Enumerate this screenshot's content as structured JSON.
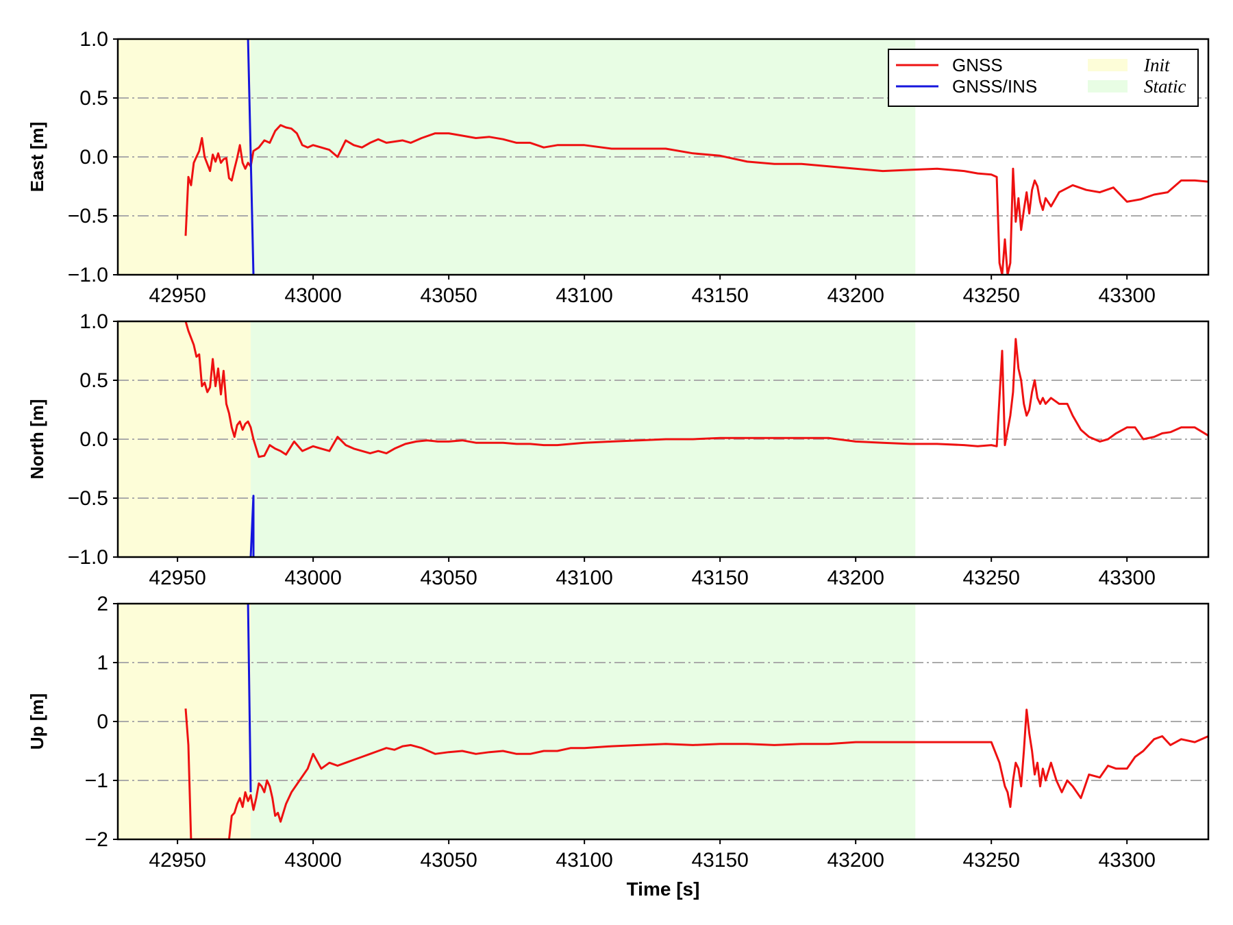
{
  "colors": {
    "gnss": "#ee1111",
    "gnss_ins": "#1515dd",
    "init_region": "#fdfdd8",
    "static_region": "#e8fde4",
    "grid": "#aaaaaa"
  },
  "legend": {
    "gnss": "GNSS",
    "gnss_ins": "GNSS/INS",
    "init": "Init",
    "static": "Static"
  },
  "chart_data": [
    {
      "type": "line",
      "ylabel": "East [m]",
      "xlabel": "",
      "xlim": [
        42928,
        43330
      ],
      "ylim": [
        -1.0,
        1.0
      ],
      "xticks": [
        42950,
        43000,
        43050,
        43100,
        43150,
        43200,
        43250,
        43300
      ],
      "yticks": [
        -1.0,
        -0.5,
        0.0,
        0.5,
        1.0
      ],
      "ytick_labels": [
        "−1.0",
        "−0.5",
        "0.0",
        "0.5",
        "1.0"
      ],
      "grid": "y-dashdot",
      "legend_position": "top-right",
      "regions": [
        {
          "name": "Init",
          "x": [
            42928,
            42977
          ]
        },
        {
          "name": "Static",
          "x": [
            42977,
            43222
          ]
        }
      ],
      "series": [
        {
          "name": "GNSS",
          "x": [
            42953,
            42954,
            42955,
            42956,
            42957,
            42958,
            42959,
            42960,
            42962,
            42963,
            42964,
            42965,
            42966,
            42967,
            42968,
            42969,
            42970,
            42971,
            42972,
            42973,
            42974,
            42975,
            42976,
            42977,
            42978,
            42980,
            42982,
            42984,
            42986,
            42988,
            42990,
            42992,
            42994,
            42996,
            42998,
            43000,
            43003,
            43006,
            43009,
            43012,
            43015,
            43018,
            43021,
            43024,
            43027,
            43030,
            43033,
            43036,
            43040,
            43045,
            43050,
            43055,
            43060,
            43065,
            43070,
            43075,
            43080,
            43085,
            43090,
            43095,
            43100,
            43110,
            43120,
            43130,
            43140,
            43150,
            43160,
            43170,
            43180,
            43190,
            43200,
            43210,
            43220,
            43230,
            43240,
            43245,
            43250,
            43252,
            43253,
            43254,
            43255,
            43256,
            43257,
            43258,
            43259,
            43260,
            43261,
            43262,
            43263,
            43264,
            43265,
            43266,
            43267,
            43268,
            43269,
            43270,
            43272,
            43275,
            43280,
            43285,
            43290,
            43295,
            43300,
            43305,
            43310,
            43315,
            43320,
            43325,
            43330
          ],
          "y": [
            -0.67,
            -0.17,
            -0.24,
            -0.05,
            0.0,
            0.05,
            0.16,
            0.0,
            -0.12,
            0.02,
            -0.04,
            0.03,
            -0.05,
            -0.02,
            -0.01,
            -0.18,
            -0.2,
            -0.1,
            -0.01,
            0.1,
            -0.05,
            -0.1,
            -0.05,
            -0.08,
            0.05,
            0.08,
            0.14,
            0.12,
            0.22,
            0.27,
            0.25,
            0.24,
            0.2,
            0.1,
            0.08,
            0.1,
            0.08,
            0.06,
            0.0,
            0.14,
            0.1,
            0.08,
            0.12,
            0.15,
            0.12,
            0.13,
            0.14,
            0.12,
            0.16,
            0.2,
            0.2,
            0.18,
            0.16,
            0.17,
            0.15,
            0.12,
            0.12,
            0.08,
            0.1,
            0.1,
            0.1,
            0.07,
            0.07,
            0.07,
            0.03,
            0.01,
            -0.04,
            -0.06,
            -0.06,
            -0.08,
            -0.1,
            -0.12,
            -0.11,
            -0.1,
            -0.12,
            -0.14,
            -0.15,
            -0.17,
            -0.9,
            -1.0,
            -0.7,
            -1.0,
            -0.9,
            -0.1,
            -0.55,
            -0.35,
            -0.62,
            -0.45,
            -0.3,
            -0.48,
            -0.28,
            -0.2,
            -0.25,
            -0.38,
            -0.45,
            -0.35,
            -0.42,
            -0.3,
            -0.24,
            -0.28,
            -0.3,
            -0.26,
            -0.38,
            -0.36,
            -0.32,
            -0.3,
            -0.2,
            -0.2,
            -0.21
          ]
        },
        {
          "name": "GNSS/INS",
          "x": [
            42976,
            42978
          ],
          "y": [
            1.0,
            -1.0
          ]
        }
      ]
    },
    {
      "type": "line",
      "ylabel": "North [m]",
      "xlabel": "",
      "xlim": [
        42928,
        43330
      ],
      "ylim": [
        -1.0,
        1.0
      ],
      "xticks": [
        42950,
        43000,
        43050,
        43100,
        43150,
        43200,
        43250,
        43300
      ],
      "yticks": [
        -1.0,
        -0.5,
        0.0,
        0.5,
        1.0
      ],
      "ytick_labels": [
        "−1.0",
        "−0.5",
        "0.0",
        "0.5",
        "1.0"
      ],
      "grid": "y-dashdot",
      "regions": [
        {
          "name": "Init",
          "x": [
            42928,
            42977
          ]
        },
        {
          "name": "Static",
          "x": [
            42977,
            43222
          ]
        }
      ],
      "series": [
        {
          "name": "GNSS",
          "x": [
            42953,
            42954,
            42956,
            42957,
            42958,
            42959,
            42960,
            42961,
            42962,
            42963,
            42964,
            42965,
            42966,
            42967,
            42968,
            42969,
            42970,
            42971,
            42972,
            42973,
            42974,
            42975,
            42976,
            42977,
            42978,
            42980,
            42982,
            42984,
            42986,
            42988,
            42990,
            42993,
            42996,
            43000,
            43003,
            43006,
            43009,
            43012,
            43015,
            43018,
            43021,
            43024,
            43027,
            43030,
            43034,
            43038,
            43042,
            43046,
            43050,
            43055,
            43060,
            43065,
            43070,
            43075,
            43080,
            43085,
            43090,
            43095,
            43100,
            43110,
            43120,
            43130,
            43140,
            43150,
            43160,
            43170,
            43180,
            43190,
            43200,
            43210,
            43220,
            43230,
            43240,
            43245,
            43250,
            43252,
            43254,
            43255,
            43257,
            43258,
            43259,
            43260,
            43261,
            43262,
            43263,
            43264,
            43265,
            43266,
            43267,
            43268,
            43269,
            43270,
            43272,
            43275,
            43278,
            43280,
            43283,
            43286,
            43290,
            43293,
            43296,
            43300,
            43303,
            43306,
            43310,
            43313,
            43316,
            43320,
            43325,
            43330
          ],
          "y": [
            1.0,
            0.92,
            0.8,
            0.7,
            0.72,
            0.45,
            0.48,
            0.4,
            0.44,
            0.68,
            0.45,
            0.6,
            0.38,
            0.58,
            0.3,
            0.22,
            0.1,
            0.02,
            0.12,
            0.15,
            0.08,
            0.13,
            0.15,
            0.1,
            0.0,
            -0.15,
            -0.14,
            -0.05,
            -0.08,
            -0.1,
            -0.13,
            -0.02,
            -0.1,
            -0.06,
            -0.08,
            -0.1,
            0.02,
            -0.05,
            -0.08,
            -0.1,
            -0.12,
            -0.1,
            -0.12,
            -0.08,
            -0.04,
            -0.02,
            -0.01,
            -0.02,
            -0.02,
            -0.01,
            -0.03,
            -0.03,
            -0.03,
            -0.04,
            -0.04,
            -0.05,
            -0.05,
            -0.04,
            -0.03,
            -0.02,
            -0.01,
            0.0,
            0.0,
            0.01,
            0.01,
            0.01,
            0.01,
            0.01,
            -0.02,
            -0.03,
            -0.04,
            -0.04,
            -0.05,
            -0.06,
            -0.05,
            -0.06,
            0.75,
            -0.05,
            0.2,
            0.4,
            0.85,
            0.6,
            0.5,
            0.3,
            0.2,
            0.25,
            0.4,
            0.5,
            0.35,
            0.3,
            0.35,
            0.3,
            0.35,
            0.3,
            0.3,
            0.2,
            0.08,
            0.02,
            -0.02,
            0.0,
            0.05,
            0.1,
            0.1,
            0.0,
            0.02,
            0.05,
            0.06,
            0.1,
            0.1,
            0.03
          ]
        },
        {
          "name": "GNSS/INS",
          "x": [
            42977,
            42978,
            42978
          ],
          "y": [
            -1.0,
            -0.48,
            -1.0
          ]
        }
      ]
    },
    {
      "type": "line",
      "ylabel": "Up [m]",
      "xlabel": "Time [s]",
      "xlim": [
        42928,
        43330
      ],
      "ylim": [
        -2,
        2
      ],
      "xticks": [
        42950,
        43000,
        43050,
        43100,
        43150,
        43200,
        43250,
        43300
      ],
      "yticks": [
        -2,
        -1,
        0,
        1,
        2
      ],
      "ytick_labels": [
        "−2",
        "−1",
        "0",
        "1",
        "2"
      ],
      "grid": "y-dashdot",
      "regions": [
        {
          "name": "Init",
          "x": [
            42928,
            42977
          ]
        },
        {
          "name": "Static",
          "x": [
            42977,
            43222
          ]
        }
      ],
      "series": [
        {
          "name": "GNSS",
          "x": [
            42953,
            42954,
            42955,
            42969,
            42970,
            42971,
            42972,
            42973,
            42974,
            42975,
            42976,
            42977,
            42978,
            42979,
            42980,
            42981,
            42982,
            42983,
            42984,
            42985,
            42986,
            42987,
            42988,
            42990,
            42992,
            42995,
            42998,
            43000,
            43003,
            43006,
            43009,
            43012,
            43015,
            43018,
            43021,
            43024,
            43027,
            43030,
            43033,
            43036,
            43040,
            43045,
            43050,
            43055,
            43060,
            43065,
            43070,
            43075,
            43080,
            43085,
            43090,
            43095,
            43100,
            43110,
            43120,
            43130,
            43140,
            43150,
            43160,
            43170,
            43180,
            43190,
            43200,
            43210,
            43220,
            43230,
            43240,
            43245,
            43250,
            43253,
            43255,
            43256,
            43257,
            43258,
            43259,
            43260,
            43261,
            43262,
            43263,
            43264,
            43265,
            43266,
            43267,
            43268,
            43269,
            43270,
            43272,
            43274,
            43276,
            43278,
            43280,
            43283,
            43286,
            43290,
            43293,
            43296,
            43300,
            43303,
            43306,
            43310,
            43313,
            43316,
            43320,
            43325,
            43330
          ],
          "y": [
            0.22,
            -0.4,
            -2.0,
            -2.0,
            -1.6,
            -1.55,
            -1.4,
            -1.3,
            -1.45,
            -1.2,
            -1.35,
            -1.25,
            -1.5,
            -1.3,
            -1.05,
            -1.1,
            -1.2,
            -1.0,
            -1.1,
            -1.3,
            -1.6,
            -1.55,
            -1.7,
            -1.4,
            -1.2,
            -1.0,
            -0.8,
            -0.55,
            -0.8,
            -0.7,
            -0.75,
            -0.7,
            -0.65,
            -0.6,
            -0.55,
            -0.5,
            -0.45,
            -0.48,
            -0.42,
            -0.4,
            -0.45,
            -0.55,
            -0.52,
            -0.5,
            -0.55,
            -0.52,
            -0.5,
            -0.55,
            -0.55,
            -0.5,
            -0.5,
            -0.45,
            -0.45,
            -0.42,
            -0.4,
            -0.38,
            -0.4,
            -0.38,
            -0.38,
            -0.4,
            -0.38,
            -0.38,
            -0.35,
            -0.35,
            -0.35,
            -0.35,
            -0.35,
            -0.35,
            -0.35,
            -0.7,
            -1.1,
            -1.2,
            -1.45,
            -1.0,
            -0.7,
            -0.8,
            -1.1,
            -0.5,
            0.2,
            -0.2,
            -0.5,
            -0.9,
            -0.7,
            -1.1,
            -0.8,
            -1.0,
            -0.7,
            -1.0,
            -1.2,
            -1.0,
            -1.1,
            -1.3,
            -0.9,
            -0.95,
            -0.75,
            -0.8,
            -0.8,
            -0.6,
            -0.5,
            -0.3,
            -0.25,
            -0.4,
            -0.3,
            -0.35,
            -0.25
          ]
        },
        {
          "name": "GNSS/INS",
          "x": [
            42976,
            42977
          ],
          "y": [
            2.0,
            -1.2
          ]
        }
      ]
    }
  ]
}
